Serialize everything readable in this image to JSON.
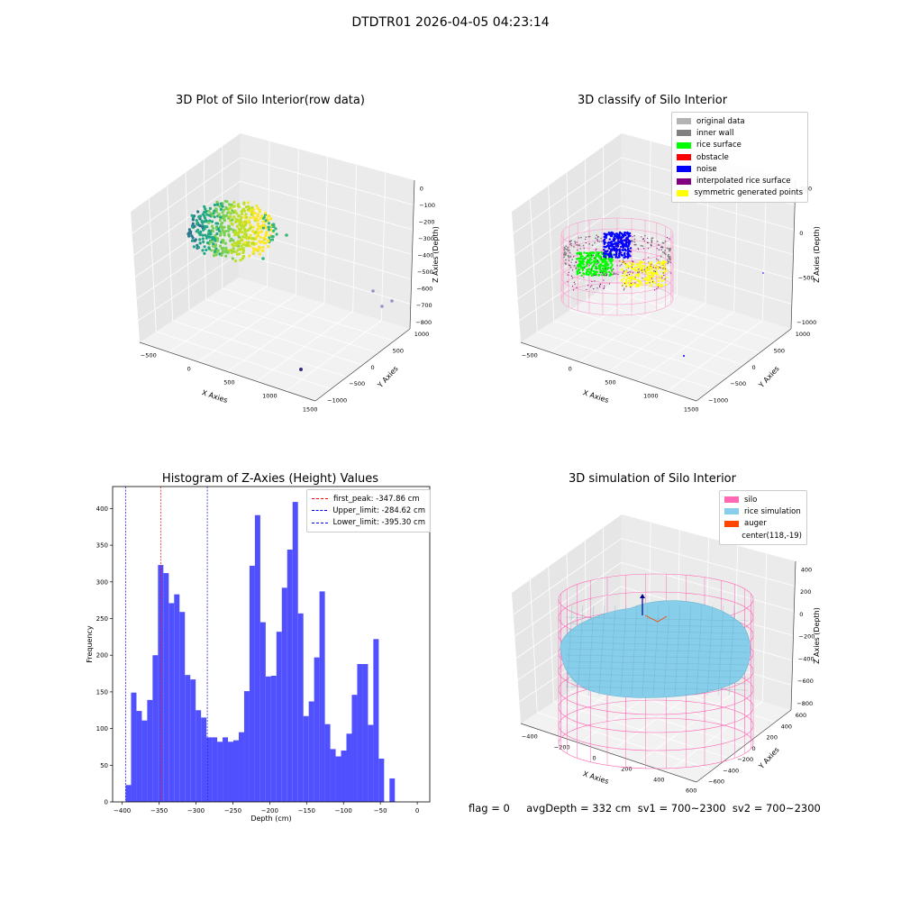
{
  "figure": {
    "suptitle": "DTDTR01 2026-04-05 04:23:14",
    "status_line": "flag = 0     avgDepth = 332 cm  sv1 = 700~2300  sv2 = 700~2300"
  },
  "panel_raw": {
    "title": "3D Plot of Silo Interior(row data)",
    "xlabel": "X Axies",
    "ylabel": "Y Axies",
    "zlabel": "Z Axies (Depth)",
    "xticks": [
      "−500",
      "0",
      "500",
      "1000",
      "1500"
    ],
    "yticks": [
      "1000",
      "500",
      "0",
      "−500",
      "−1000"
    ],
    "zticks": [
      "0",
      "−100",
      "−200",
      "−300",
      "−400",
      "−500",
      "−600",
      "−700",
      "−800"
    ]
  },
  "panel_classify": {
    "title": "3D classify of Silo Interior",
    "xlabel": "X Axies",
    "ylabel": "Y Axies",
    "zlabel": "Z Axies (Depth)",
    "xticks": [
      "−500",
      "0",
      "500",
      "1000",
      "1500"
    ],
    "yticks": [
      "1000",
      "500",
      "0",
      "−500",
      "−1000"
    ],
    "zticks": [
      "500",
      "0",
      "−500",
      "−1000"
    ],
    "legend": [
      {
        "label": "original data",
        "color": "#b3b3b3"
      },
      {
        "label": "inner wall",
        "color": "#808080"
      },
      {
        "label": "rice surface",
        "color": "#00ff00"
      },
      {
        "label": "obstacle",
        "color": "#ff0000"
      },
      {
        "label": "noise",
        "color": "#0000ff"
      },
      {
        "label": "interpolated rice surface",
        "color": "#800080"
      },
      {
        "label": "symmetric generated points",
        "color": "#ffff00"
      }
    ]
  },
  "panel_sim": {
    "title": "3D simulation of Silo Interior",
    "xlabel": "X Axies",
    "ylabel": "Y Axies",
    "zlabel": "Z Axies (Depth)",
    "xticks": [
      "−400",
      "−200",
      "0",
      "200",
      "400",
      "600"
    ],
    "yticks": [
      "600",
      "400",
      "200",
      "0",
      "−200",
      "−400",
      "−600"
    ],
    "zticks": [
      "400",
      "200",
      "0",
      "−200",
      "−400",
      "−600",
      "−800"
    ],
    "legend": [
      {
        "label": "silo",
        "color": "#ff69b4"
      },
      {
        "label": "rice simulation",
        "color": "#87ceeb"
      },
      {
        "label": "auger",
        "color": "#ff4500"
      },
      {
        "label": "center(118,-19)",
        "color": ""
      }
    ]
  },
  "chart_data": {
    "type": "bar",
    "title": "Histogram of Z-Axies (Height) Values",
    "xlabel": "Depth (cm)",
    "ylabel": "Frequency",
    "xlim": [
      -413,
      17
    ],
    "ylim": [
      0,
      430
    ],
    "xticks": [
      -400,
      -350,
      -300,
      -250,
      -200,
      -150,
      -100,
      -50,
      0
    ],
    "yticks": [
      0,
      50,
      100,
      150,
      200,
      250,
      300,
      350,
      400
    ],
    "bar_color": "#5050ff",
    "bin_width": 7.3,
    "bin_start": -395.3,
    "values": [
      23,
      149,
      124,
      111,
      139,
      200,
      323,
      312,
      271,
      283,
      259,
      173,
      167,
      125,
      115,
      88,
      88,
      82,
      88,
      82,
      84,
      95,
      151,
      322,
      391,
      245,
      171,
      172,
      232,
      292,
      344,
      409,
      257,
      117,
      137,
      197,
      287,
      106,
      72,
      62,
      70,
      93,
      146,
      188,
      188,
      105,
      222,
      59,
      0,
      32
    ],
    "vlines": [
      {
        "label": "first_peak: -347.86 cm",
        "x": -347.86,
        "color": "#ff0000"
      },
      {
        "label": "Upper_limit: -284.62 cm",
        "x": -284.62,
        "color": "#0000ff"
      },
      {
        "label": "Lower_limit: -395.30 cm",
        "x": -395.3,
        "color": "#0000ff"
      }
    ]
  }
}
